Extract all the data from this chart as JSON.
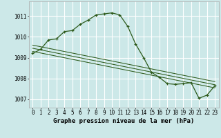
{
  "title": "Graphe pression niveau de la mer (hPa)",
  "bg_color": "#cce8e8",
  "grid_color": "#ffffff",
  "line_color": "#2d5a1b",
  "hours": [
    0,
    1,
    2,
    3,
    4,
    5,
    6,
    7,
    8,
    9,
    10,
    11,
    12,
    13,
    14,
    15,
    16,
    17,
    18,
    19,
    20,
    21,
    22,
    23
  ],
  "pressure": [
    1009.2,
    1009.4,
    1009.85,
    1009.9,
    1010.25,
    1010.3,
    1010.6,
    1010.8,
    1011.05,
    1011.1,
    1011.15,
    1011.05,
    1010.5,
    1009.65,
    1009.0,
    1008.3,
    1008.05,
    1007.75,
    1007.72,
    1007.75,
    1007.8,
    1007.05,
    1007.2,
    1007.65
  ],
  "trend1_x": [
    0,
    23
  ],
  "trend1_y": [
    1009.6,
    1007.85
  ],
  "trend2_x": [
    0,
    23
  ],
  "trend2_y": [
    1009.45,
    1007.7
  ],
  "trend3_x": [
    0,
    23
  ],
  "trend3_y": [
    1009.3,
    1007.55
  ],
  "ylim": [
    1006.6,
    1011.7
  ],
  "yticks": [
    1007,
    1008,
    1009,
    1010,
    1011
  ],
  "xticks": [
    0,
    1,
    2,
    3,
    4,
    5,
    6,
    7,
    8,
    9,
    10,
    11,
    12,
    13,
    14,
    15,
    16,
    17,
    18,
    19,
    20,
    21,
    22,
    23
  ],
  "title_fontsize": 6.5,
  "tick_fontsize": 5.5,
  "ytick_fontsize": 5.5
}
